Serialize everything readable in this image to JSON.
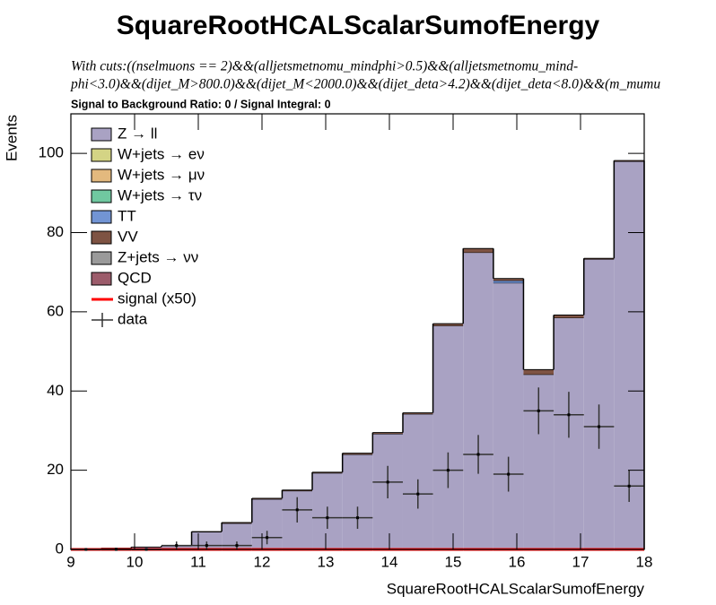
{
  "chart_data": {
    "type": "histogram",
    "title": "SquareRootHCALScalarSumofEnergy",
    "subtitle_lines": [
      "With cuts:((nselmuons == 2)&&(alljetsmetnomu_mindphi>0.5)&&(alljetsmetnomu_mind-",
      "phi<3.0)&&(dijet_M>800.0)&&(dijet_M<2000.0)&&(dijet_deta>4.2)&&(dijet_deta<8.0)&&(m_mumu"
    ],
    "annotation": "Signal to Background Ratio: 0 / Signal Integral: 0",
    "x_label": "SquareRootHCALScalarSumofEnergy",
    "y_label": "Events",
    "bins": [
      9,
      9.474,
      9.947,
      10.421,
      10.895,
      11.368,
      11.842,
      12.316,
      12.789,
      13.263,
      13.737,
      14.211,
      14.684,
      15.158,
      15.632,
      16.105,
      16.579,
      17.053,
      17.526,
      18
    ],
    "series": [
      {
        "name": "Z → ll",
        "color": "#a9a2c3",
        "values": [
          0.2,
          0.3,
          0.6,
          0.9,
          4.4,
          6.6,
          12.7,
          14.8,
          19.3,
          24,
          29.2,
          34.2,
          56.5,
          75,
          67.3,
          44.2,
          58.5,
          73.3,
          98
        ]
      },
      {
        "name": "W+jets → eν",
        "color": "#d4d485",
        "values": [
          0,
          0,
          0,
          0,
          0,
          0,
          0,
          0,
          0,
          0,
          0,
          0,
          0,
          0,
          0,
          0,
          0,
          0,
          0
        ]
      },
      {
        "name": "W+jets → μν",
        "color": "#e3b97e",
        "values": [
          0,
          0,
          0,
          0,
          0,
          0,
          0,
          0,
          0,
          0,
          0,
          0,
          0,
          0,
          0,
          0,
          0,
          0,
          0
        ]
      },
      {
        "name": "W+jets → τν",
        "color": "#70c8a0",
        "values": [
          0,
          0,
          0,
          0,
          0,
          0,
          0,
          0,
          0,
          0,
          0,
          0,
          0,
          0,
          0,
          0,
          0,
          0,
          0
        ]
      },
      {
        "name": "TT",
        "color": "#7294d4",
        "values": [
          0,
          0,
          0,
          0,
          0,
          0,
          0,
          0,
          0,
          0,
          0,
          0,
          0,
          0,
          0.6,
          0,
          0,
          0,
          0
        ]
      },
      {
        "name": "VV",
        "color": "#7e5343",
        "values": [
          0,
          0,
          0,
          0,
          0.1,
          0.2,
          0.2,
          0.2,
          0.2,
          0.3,
          0.3,
          0.3,
          0.5,
          1,
          0.5,
          1.2,
          0.7,
          0.2,
          0.2
        ]
      },
      {
        "name": "Z+jets → νν",
        "color": "#9a9a9a",
        "values": [
          0,
          0,
          0,
          0,
          0,
          0,
          0,
          0,
          0,
          0,
          0,
          0,
          0,
          0,
          0,
          0,
          0,
          0,
          0
        ]
      },
      {
        "name": "QCD",
        "color": "#9c5c6b",
        "values": [
          0,
          0,
          0,
          0,
          0,
          0,
          0,
          0,
          0,
          0,
          0,
          0,
          0,
          0,
          0,
          0,
          0,
          0,
          0
        ]
      }
    ],
    "signal": {
      "name": "signal (x50)",
      "color": "#ff0000",
      "values": [
        0,
        0,
        0,
        0,
        0,
        0,
        0,
        0,
        0,
        0,
        0,
        0,
        0,
        0,
        0,
        0,
        0,
        0,
        0
      ]
    },
    "data": {
      "name": "data",
      "color": "#000000",
      "values": [
        0,
        0,
        0,
        1,
        1,
        1,
        3,
        10,
        8,
        8,
        17,
        14,
        20,
        24,
        19,
        35,
        34,
        31,
        16
      ],
      "errors": [
        0,
        0,
        0,
        1,
        1,
        1,
        1.7,
        3.2,
        2.8,
        2.8,
        4.1,
        3.7,
        4.5,
        4.9,
        4.4,
        5.9,
        5.8,
        5.6,
        4
      ]
    },
    "xlim": [
      9,
      18
    ],
    "ylim": [
      0,
      110
    ],
    "xticks": [
      9,
      10,
      11,
      12,
      13,
      14,
      15,
      16,
      17,
      18
    ],
    "yticks": [
      0,
      20,
      40,
      60,
      80,
      100
    ]
  }
}
